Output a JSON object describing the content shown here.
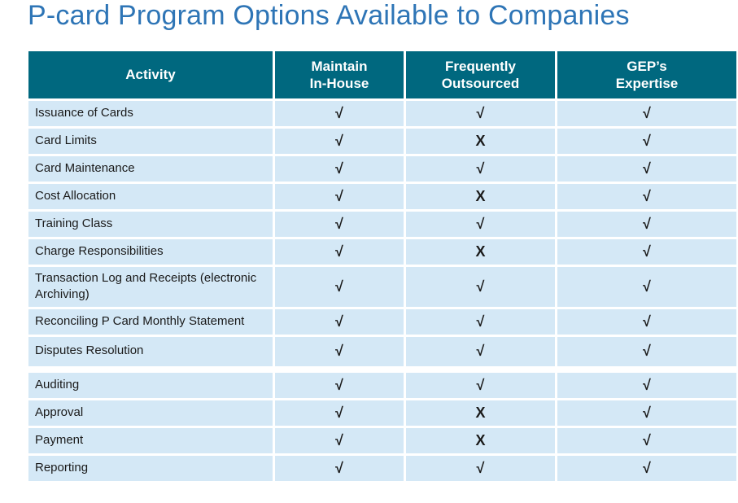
{
  "slide": {
    "title": "P-card Program Options Available to Companies"
  },
  "colors": {
    "title_color": "#2E75B6",
    "header_bg": "#00687F",
    "header_text": "#FFFFFF",
    "row_bg": "#D4E8F6",
    "mark_color": "#1A1A1A"
  },
  "table": {
    "columns": [
      {
        "id": "activity",
        "label": "Activity"
      },
      {
        "id": "maintain-in-house",
        "label": "Maintain\nIn-House"
      },
      {
        "id": "frequently-outsourced",
        "label": "Frequently\nOutsourced"
      },
      {
        "id": "geps-expertise",
        "label": "GEP’s\nExpertise"
      }
    ],
    "symbols": {
      "check": "√",
      "cross": "X"
    },
    "rows": [
      {
        "activity": "Issuance of Cards",
        "marks": [
          "check",
          "check",
          "check"
        ]
      },
      {
        "activity": "Card Limits",
        "marks": [
          "check",
          "cross",
          "check"
        ]
      },
      {
        "activity": "Card Maintenance",
        "marks": [
          "check",
          "check",
          "check"
        ]
      },
      {
        "activity": "Cost Allocation",
        "marks": [
          "check",
          "cross",
          "check"
        ]
      },
      {
        "activity": "Training Class",
        "marks": [
          "check",
          "check",
          "check"
        ]
      },
      {
        "activity": "Charge Responsibilities",
        "marks": [
          "check",
          "cross",
          "check"
        ]
      },
      {
        "activity": "Transaction Log and Receipts (electronic Archiving)",
        "marks": [
          "check",
          "check",
          "check"
        ]
      },
      {
        "activity": "Reconciling P Card Monthly Statement",
        "marks": [
          "check",
          "check",
          "check"
        ]
      },
      {
        "activity": "Disputes Resolution",
        "marks": [
          "check",
          "check",
          "check"
        ]
      },
      {
        "activity": "Auditing",
        "marks": [
          "check",
          "check",
          "check"
        ]
      },
      {
        "activity": "Approval",
        "marks": [
          "check",
          "cross",
          "check"
        ]
      },
      {
        "activity": "Payment",
        "marks": [
          "check",
          "cross",
          "check"
        ]
      },
      {
        "activity": "Reporting",
        "marks": [
          "check",
          "check",
          "check"
        ]
      }
    ]
  }
}
